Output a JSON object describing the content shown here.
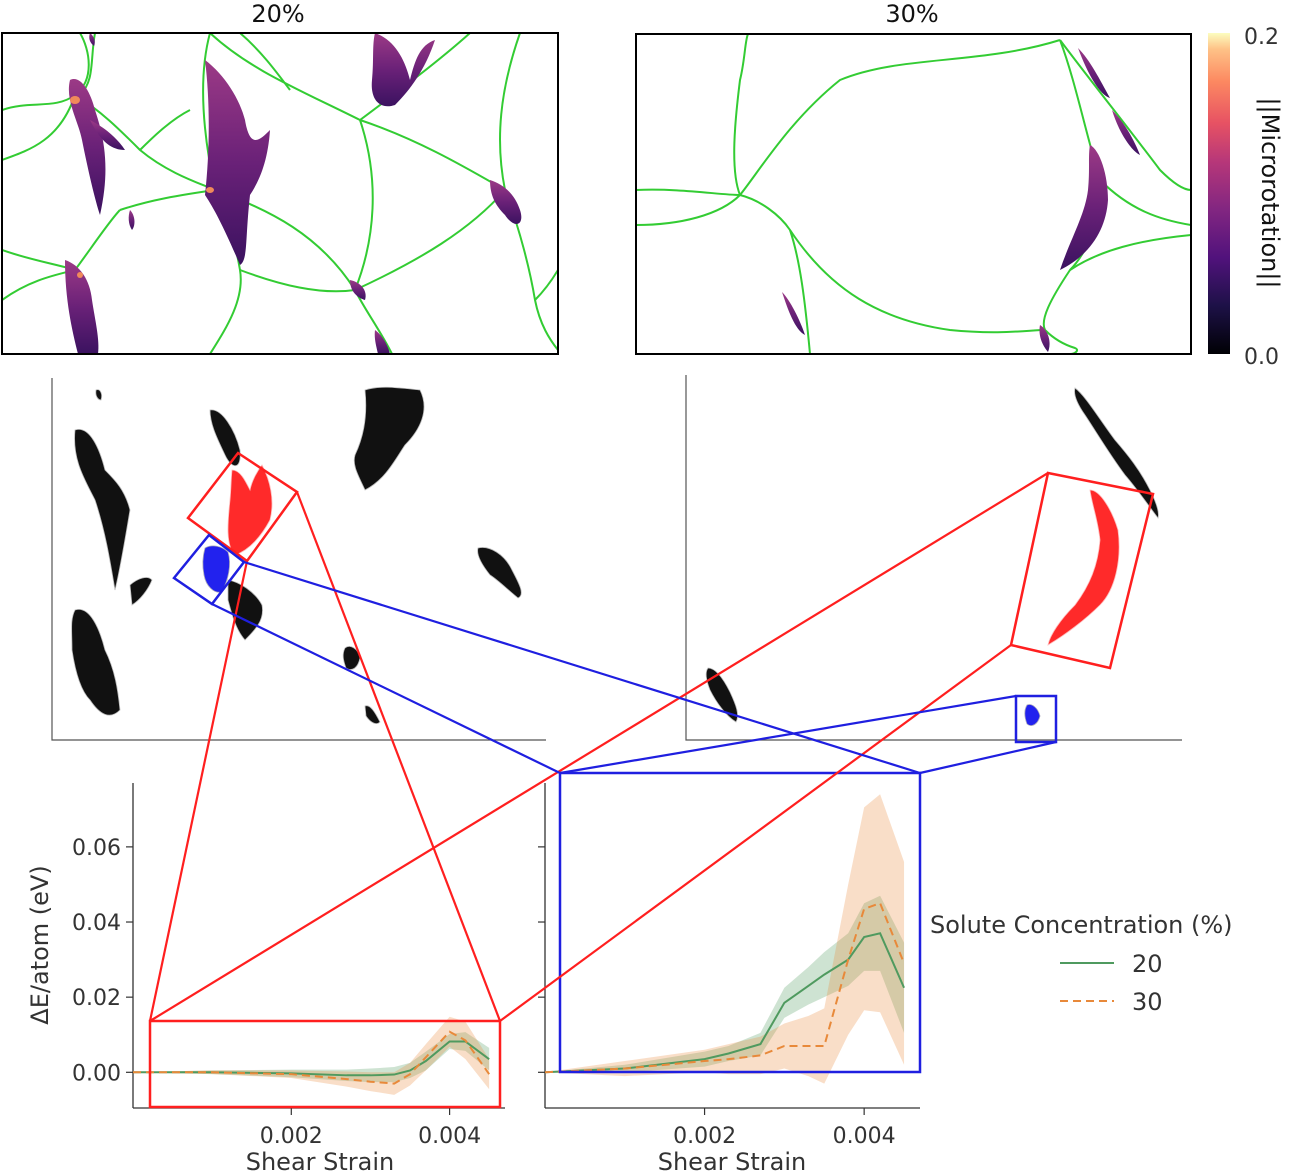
{
  "maps": {
    "left_title": "20%",
    "right_title": "30%",
    "colorbar_label": "||Microrotation||",
    "colorbar_max": "0.2",
    "colorbar_min": "0.0",
    "boundary_color": "#33cc33",
    "colormap": "magma"
  },
  "clusters": {
    "highlight_red": "#ff2a2a",
    "highlight_blue": "#2222ee",
    "other": "#111111"
  },
  "legend": {
    "title": "Solute Concentration (%)",
    "entries": [
      "20",
      "30"
    ]
  },
  "chart_data": {
    "type": "line",
    "xlabel": "Shear Strain",
    "ylabel": "ΔE/atom (eV)",
    "x_ticks": [
      "0.002",
      "0.004"
    ],
    "y_ticks": [
      "0.00",
      "0.02",
      "0.04",
      "0.06"
    ],
    "panels": [
      {
        "name": "red cluster",
        "xlim": [
          0,
          0.0047
        ],
        "ylim": [
          -0.0095,
          0.077
        ],
        "x": [
          0.0,
          0.001,
          0.002,
          0.0027,
          0.003,
          0.0033,
          0.0035,
          0.0037,
          0.004,
          0.0042,
          0.0045
        ],
        "series": [
          {
            "name": "20",
            "color": "#4f9a5f",
            "dash": "",
            "values": [
              0.0,
              0.0,
              -0.0003,
              -0.0008,
              -0.0008,
              -0.0006,
              0.0005,
              0.003,
              0.0082,
              0.0082,
              0.0035
            ],
            "band": [
              0.0,
              0.0005,
              0.001,
              0.0015,
              0.0018,
              0.002,
              0.002,
              0.0025,
              0.002,
              0.0025,
              0.003
            ]
          },
          {
            "name": "30",
            "color": "#e8893a",
            "dash": "8,5",
            "values": [
              0.0,
              0.0,
              -0.0005,
              -0.0018,
              -0.0025,
              -0.003,
              -0.0005,
              0.004,
              0.0108,
              0.0085,
              -0.0005
            ],
            "band": [
              0.0,
              0.0005,
              0.001,
              0.002,
              0.0025,
              0.003,
              0.003,
              0.0035,
              0.004,
              0.005,
              0.004
            ]
          }
        ]
      },
      {
        "name": "blue cluster",
        "xlim": [
          0,
          0.0047
        ],
        "ylim": [
          -0.0095,
          0.077
        ],
        "x": [
          0.0,
          0.001,
          0.002,
          0.0023,
          0.0027,
          0.003,
          0.0033,
          0.0035,
          0.0038,
          0.004,
          0.0042,
          0.0045
        ],
        "series": [
          {
            "name": "20",
            "color": "#4f9a5f",
            "dash": "",
            "values": [
              0.0,
              0.001,
              0.0035,
              0.005,
              0.0075,
              0.0185,
              0.023,
              0.026,
              0.03,
              0.036,
              0.037,
              0.0225
            ],
            "band": [
              0.0,
              0.001,
              0.002,
              0.002,
              0.003,
              0.004,
              0.005,
              0.006,
              0.007,
              0.009,
              0.01,
              0.012
            ]
          },
          {
            "name": "30",
            "color": "#e8893a",
            "dash": "8,5",
            "values": [
              0.0,
              0.001,
              0.003,
              0.0035,
              0.0045,
              0.007,
              0.007,
              0.007,
              0.03,
              0.0435,
              0.045,
              0.029
            ],
            "band": [
              0.0,
              0.002,
              0.003,
              0.004,
              0.005,
              0.006,
              0.008,
              0.01,
              0.02,
              0.027,
              0.029,
              0.027
            ]
          }
        ]
      }
    ]
  }
}
